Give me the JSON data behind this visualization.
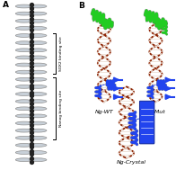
{
  "panel_A_label": "A",
  "panel_B_label": "B",
  "bg_color": "#ffffff",
  "dna_color": "#8B2000",
  "dna_light": "#e8d8cc",
  "sox2_color": "#22cc22",
  "nanog_color": "#2244ee",
  "nuc_fill": "#c8d0d8",
  "nuc_edge": "#909090",
  "link_color": "#222222",
  "sox2_label": "SOX2 binding site",
  "nanog_label": "Nanog binding site",
  "ng_wt_label": "Ng-WT",
  "ng_mut_label": "Ng-Mut",
  "ng_crystal_label": "Ng-Crystal",
  "lfs": 4.5,
  "plfs": 6.5,
  "fig_width": 2.06,
  "fig_height": 1.89,
  "dpi": 100
}
